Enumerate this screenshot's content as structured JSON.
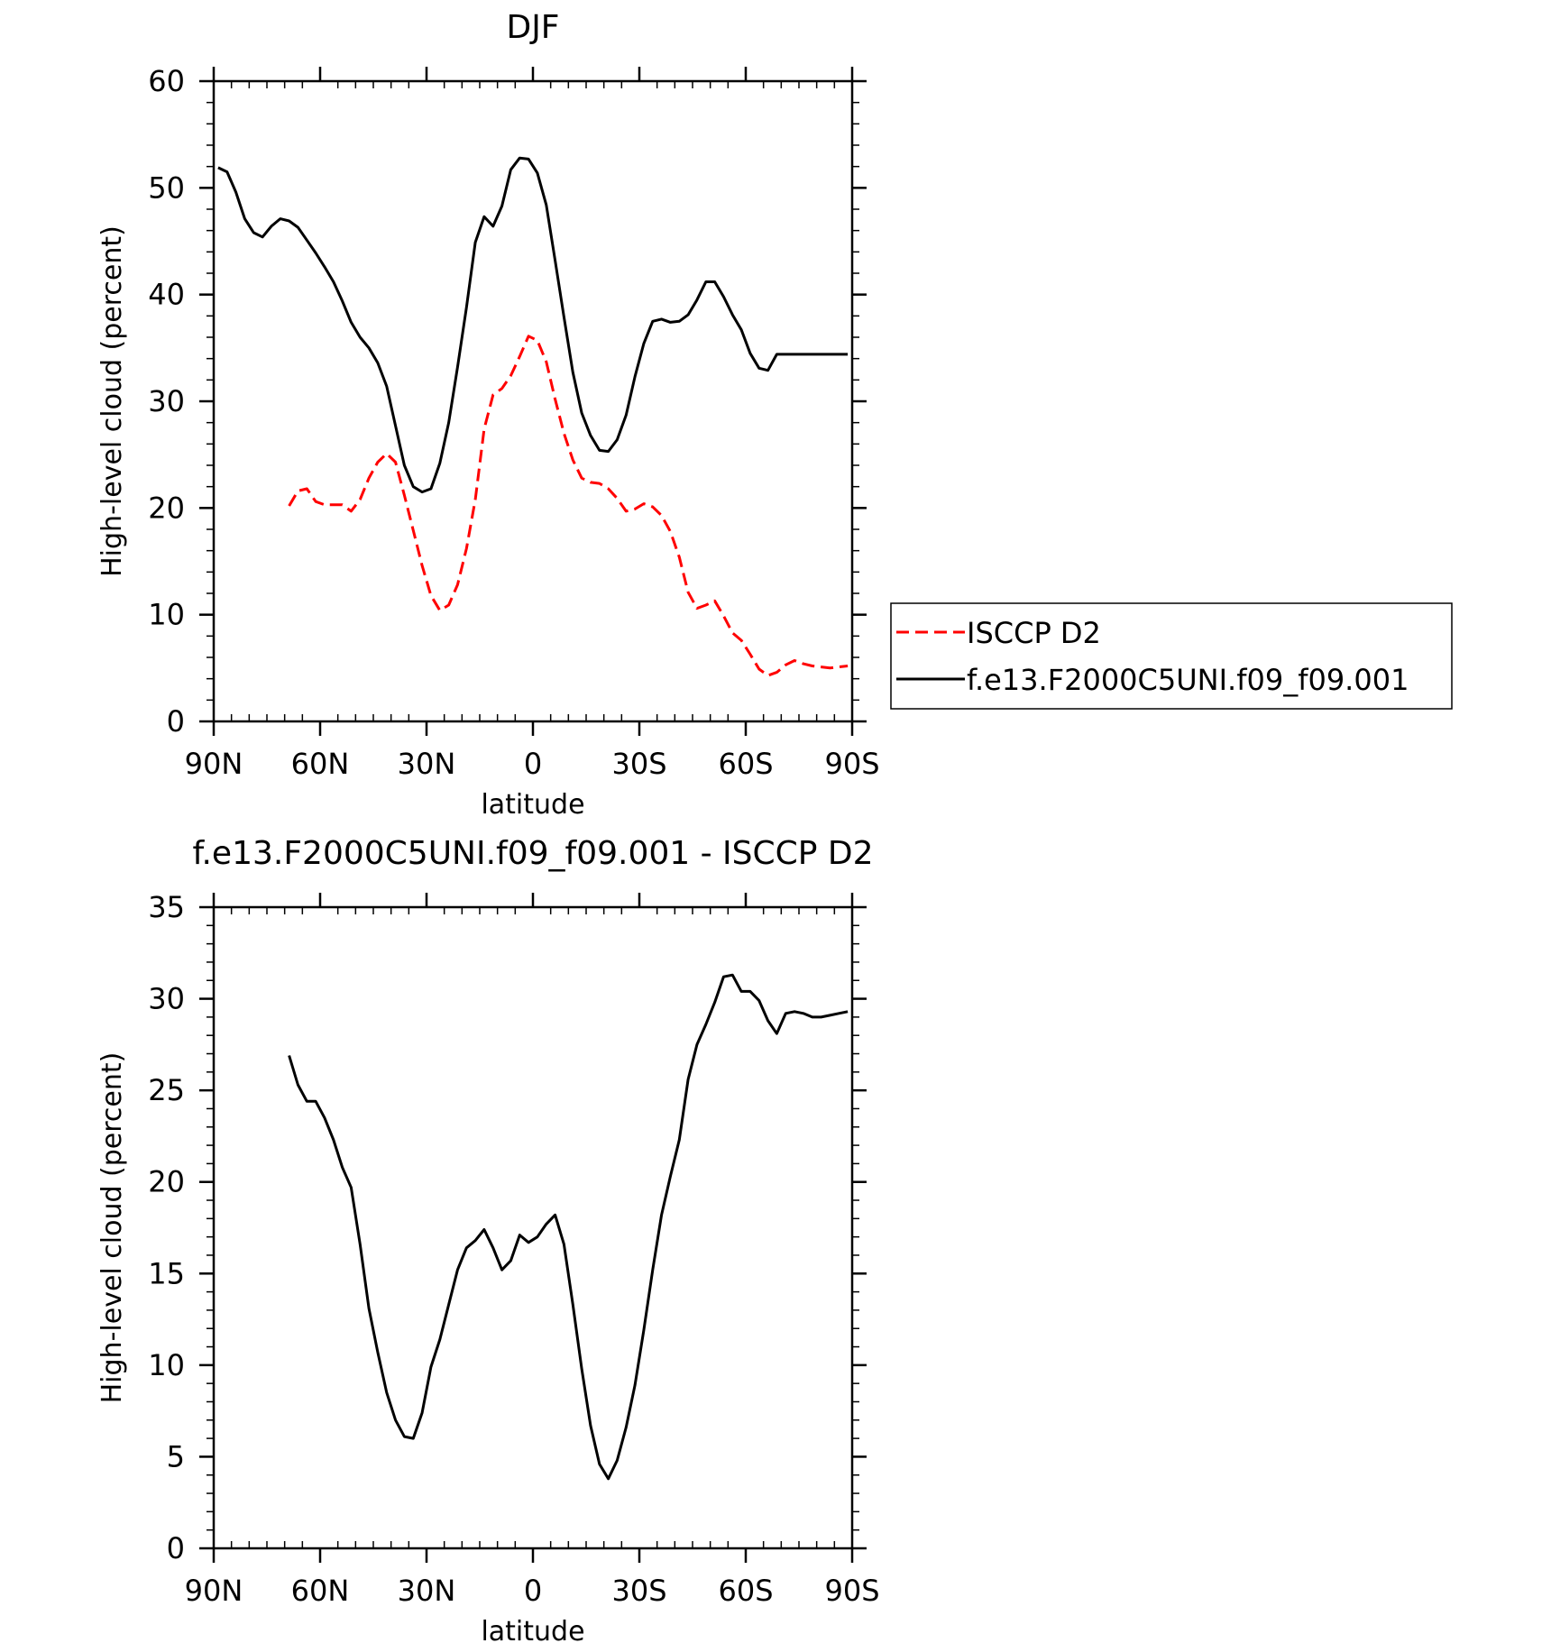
{
  "chart_data": [
    {
      "type": "line",
      "title": "DJF",
      "xlabel": "latitude",
      "ylabel": "High-level cloud (percent)",
      "xlim": [
        90,
        -90
      ],
      "ylim": [
        0,
        60
      ],
      "xticks": [
        {
          "value": 90,
          "label": "90N"
        },
        {
          "value": 60,
          "label": "60N"
        },
        {
          "value": 30,
          "label": "30N"
        },
        {
          "value": 0,
          "label": "0"
        },
        {
          "value": -30,
          "label": "30S"
        },
        {
          "value": -60,
          "label": "60S"
        },
        {
          "value": -90,
          "label": "90S"
        }
      ],
      "yticks": [
        {
          "value": 0,
          "label": "0"
        },
        {
          "value": 10,
          "label": "10"
        },
        {
          "value": 20,
          "label": "20"
        },
        {
          "value": 30,
          "label": "30"
        },
        {
          "value": 40,
          "label": "40"
        },
        {
          "value": 50,
          "label": "50"
        },
        {
          "value": 60,
          "label": "60"
        }
      ],
      "legend": [
        {
          "label": "ISCCP D2",
          "color": "#ff0000",
          "dash": "dashed"
        },
        {
          "label": "f.e13.F2000C5UNI.f09_f09.001",
          "color": "#000000",
          "dash": "solid"
        }
      ],
      "series": [
        {
          "name": "ISCCP D2",
          "color": "#ff0000",
          "dash": "dashed",
          "x": [
            68.75,
            66.25,
            63.75,
            61.25,
            58.75,
            56.25,
            53.75,
            51.25,
            48.75,
            46.25,
            43.75,
            41.25,
            38.75,
            36.25,
            33.75,
            31.25,
            28.75,
            26.25,
            23.75,
            21.25,
            18.75,
            16.25,
            13.75,
            11.25,
            8.75,
            6.25,
            3.75,
            1.25,
            -1.25,
            -3.75,
            -6.25,
            -8.75,
            -11.25,
            -13.75,
            -16.25,
            -18.75,
            -21.25,
            -23.75,
            -26.25,
            -28.75,
            -31.25,
            -33.75,
            -36.25,
            -38.75,
            -41.25,
            -43.75,
            -46.25,
            -48.75,
            -51.25,
            -53.75,
            -56.25,
            -58.75,
            -61.25,
            -63.75,
            -66.25,
            -68.75,
            -71.25,
            -73.75,
            -76.25,
            -78.75,
            -81.25,
            -83.75,
            -86.25,
            -88.75
          ],
          "y": [
            20.2,
            21.6,
            21.8,
            20.6,
            20.3,
            20.3,
            20.3,
            19.7,
            20.8,
            22.8,
            24.3,
            25.1,
            24.3,
            21.2,
            17.9,
            14.6,
            11.8,
            10.4,
            10.9,
            12.8,
            16.2,
            20.8,
            27.4,
            30.6,
            31.2,
            32.4,
            34.2,
            36.1,
            35.7,
            33.7,
            30.2,
            27.0,
            24.5,
            22.8,
            22.4,
            22.3,
            21.8,
            20.9,
            19.7,
            19.9,
            20.4,
            20.1,
            19.3,
            17.8,
            15.4,
            12.1,
            10.6,
            10.9,
            11.3,
            9.9,
            8.3,
            7.6,
            6.3,
            4.9,
            4.3,
            4.6,
            5.3,
            5.7,
            5.4,
            5.2,
            5.1,
            5.0,
            5.1,
            5.2
          ]
        },
        {
          "name": "f.e13.F2000C5UNI.f09_f09.001",
          "color": "#000000",
          "dash": "solid",
          "x": [
            88.75,
            86.25,
            83.75,
            81.25,
            78.75,
            76.25,
            73.75,
            71.25,
            68.75,
            66.25,
            63.75,
            61.25,
            58.75,
            56.25,
            53.75,
            51.25,
            48.75,
            46.25,
            43.75,
            41.25,
            38.75,
            36.25,
            33.75,
            31.25,
            28.75,
            26.25,
            23.75,
            21.25,
            18.75,
            16.25,
            13.75,
            11.25,
            8.75,
            6.25,
            3.75,
            1.25,
            -1.25,
            -3.75,
            -6.25,
            -8.75,
            -11.25,
            -13.75,
            -16.25,
            -18.75,
            -21.25,
            -23.75,
            -26.25,
            -28.75,
            -31.25,
            -33.75,
            -36.25,
            -38.75,
            -41.25,
            -43.75,
            -46.25,
            -48.75,
            -51.25,
            -53.75,
            -56.25,
            -58.75,
            -61.25,
            -63.75,
            -66.25,
            -68.75,
            -71.25,
            -73.75,
            -76.25,
            -78.75,
            -81.25,
            -83.75,
            -86.25,
            -88.75
          ],
          "y": [
            51.9,
            51.5,
            49.6,
            47.1,
            45.8,
            45.4,
            46.4,
            47.1,
            46.9,
            46.3,
            45.1,
            43.9,
            42.6,
            41.2,
            39.4,
            37.4,
            36.0,
            35.0,
            33.6,
            31.4,
            27.7,
            24.0,
            22.0,
            21.5,
            21.8,
            24.2,
            28.0,
            33.2,
            38.8,
            44.9,
            47.3,
            46.4,
            48.3,
            51.7,
            52.8,
            52.7,
            51.4,
            48.4,
            43.2,
            37.9,
            32.7,
            28.9,
            26.8,
            25.4,
            25.3,
            26.4,
            28.7,
            32.3,
            35.4,
            37.5,
            37.7,
            37.4,
            37.5,
            38.1,
            39.5,
            41.2,
            41.2,
            39.8,
            38.1,
            36.7,
            34.5,
            33.1,
            32.9,
            34.4,
            34.4,
            34.4,
            34.4,
            34.4,
            34.4,
            34.4,
            34.4,
            34.4
          ]
        }
      ]
    },
    {
      "type": "line",
      "title": "f.e13.F2000C5UNI.f09_f09.001 - ISCCP D2",
      "xlabel": "latitude",
      "ylabel": "High-level cloud (percent)",
      "xlim": [
        90,
        -90
      ],
      "ylim": [
        0,
        35
      ],
      "xticks": [
        {
          "value": 90,
          "label": "90N"
        },
        {
          "value": 60,
          "label": "60N"
        },
        {
          "value": 30,
          "label": "30N"
        },
        {
          "value": 0,
          "label": "0"
        },
        {
          "value": -30,
          "label": "30S"
        },
        {
          "value": -60,
          "label": "60S"
        },
        {
          "value": -90,
          "label": "90S"
        }
      ],
      "yticks": [
        {
          "value": 0,
          "label": "0"
        },
        {
          "value": 5,
          "label": "5"
        },
        {
          "value": 10,
          "label": "10"
        },
        {
          "value": 15,
          "label": "15"
        },
        {
          "value": 20,
          "label": "20"
        },
        {
          "value": 25,
          "label": "25"
        },
        {
          "value": 30,
          "label": "30"
        },
        {
          "value": 35,
          "label": "35"
        }
      ],
      "legend": [],
      "series": [
        {
          "name": "f.e13.F2000C5UNI.f09_f09.001 - ISCCP D2",
          "color": "#000000",
          "dash": "solid",
          "x": [
            68.75,
            66.25,
            63.75,
            61.25,
            58.75,
            56.25,
            53.75,
            51.25,
            48.75,
            46.25,
            43.75,
            41.25,
            38.75,
            36.25,
            33.75,
            31.25,
            28.75,
            26.25,
            23.75,
            21.25,
            18.75,
            16.25,
            13.75,
            11.25,
            8.75,
            6.25,
            3.75,
            1.25,
            -1.25,
            -3.75,
            -6.25,
            -8.75,
            -11.25,
            -13.75,
            -16.25,
            -18.75,
            -21.25,
            -23.75,
            -26.25,
            -28.75,
            -31.25,
            -33.75,
            -36.25,
            -38.75,
            -41.25,
            -43.75,
            -46.25,
            -48.75,
            -51.25,
            -53.75,
            -56.25,
            -58.75,
            -61.25,
            -63.75,
            -66.25,
            -68.75,
            -71.25,
            -73.75,
            -76.25,
            -78.75,
            -81.25,
            -83.75,
            -86.25,
            -88.75
          ],
          "y": [
            26.9,
            25.3,
            24.4,
            24.4,
            23.5,
            22.3,
            20.8,
            19.7,
            16.6,
            13.1,
            10.7,
            8.5,
            7.0,
            6.1,
            6.0,
            7.4,
            9.9,
            11.4,
            13.3,
            15.2,
            16.4,
            16.8,
            17.4,
            16.4,
            15.2,
            15.7,
            17.1,
            16.7,
            17.0,
            17.7,
            18.2,
            16.6,
            13.3,
            9.8,
            6.7,
            4.6,
            3.8,
            4.8,
            6.6,
            8.9,
            11.9,
            15.2,
            18.2,
            20.3,
            22.3,
            25.6,
            27.5,
            28.6,
            29.8,
            31.2,
            31.3,
            30.4,
            30.4,
            29.9,
            28.8,
            28.1,
            29.2,
            29.3,
            29.2,
            29.0,
            29.0,
            29.1,
            29.2,
            29.3
          ]
        }
      ]
    }
  ]
}
